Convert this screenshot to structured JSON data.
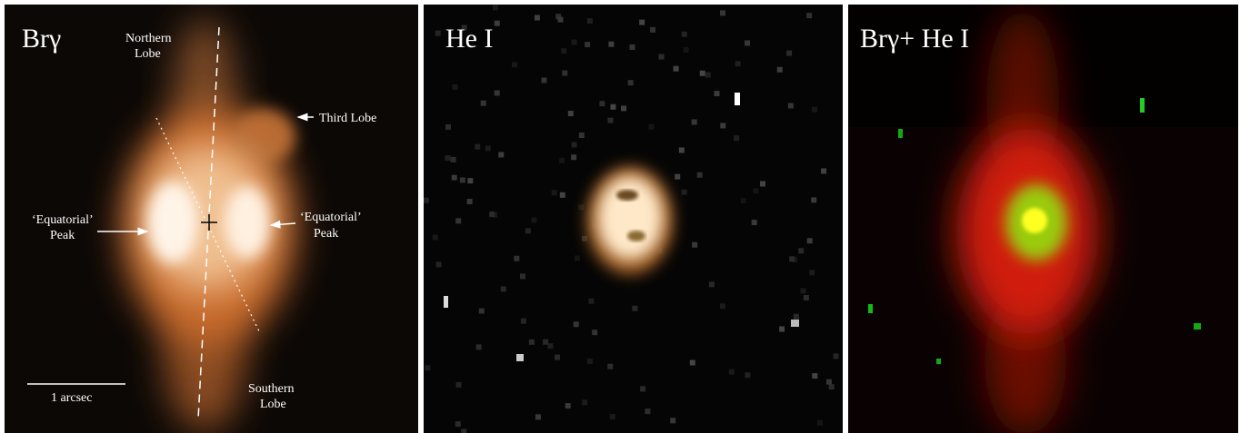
{
  "panels": [
    {
      "title": "Brγ",
      "annotations": [
        {
          "lines": [
            "Northern",
            "Lobe"
          ]
        },
        {
          "lines": [
            "Third Lobe"
          ]
        },
        {
          "lines": [
            "‘Equatorial’",
            "Peak"
          ]
        },
        {
          "lines": [
            "‘Equatorial’",
            "Peak"
          ]
        },
        {
          "lines": [
            "Southern",
            "Lobe"
          ]
        }
      ],
      "scale_bar": "1 arcsec"
    },
    {
      "title": "He I"
    },
    {
      "title": "Brγ+ He I"
    }
  ]
}
